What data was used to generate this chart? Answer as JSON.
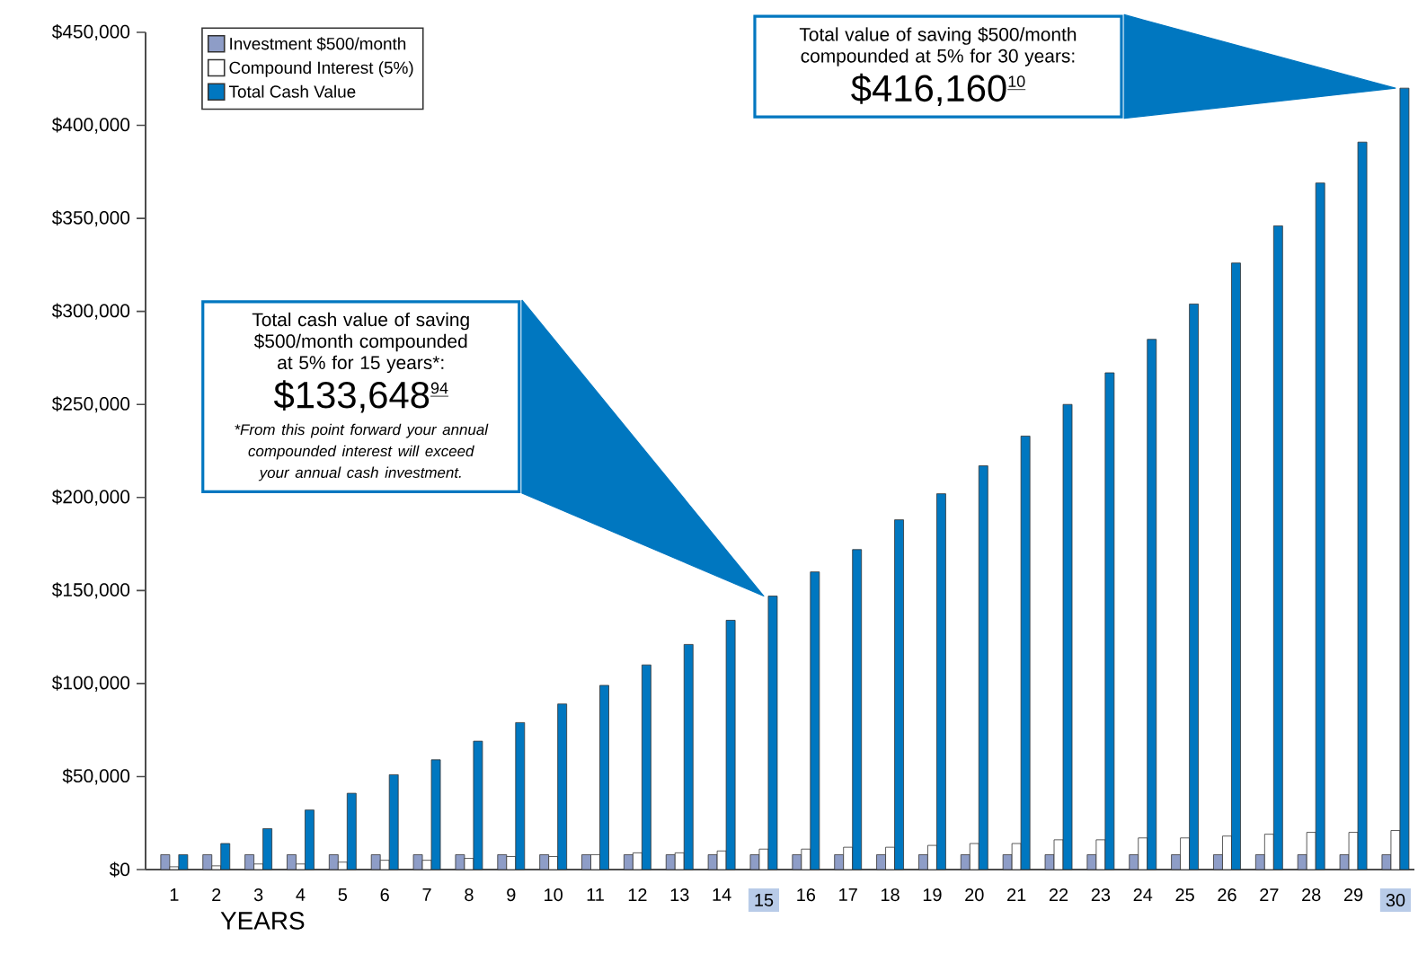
{
  "chart_data": {
    "type": "bar",
    "xlabel": "YEARS",
    "categories": [
      "1",
      "2",
      "3",
      "4",
      "5",
      "6",
      "7",
      "8",
      "9",
      "10",
      "11",
      "12",
      "13",
      "14",
      "15",
      "16",
      "17",
      "18",
      "19",
      "20",
      "21",
      "22",
      "23",
      "24",
      "25",
      "26",
      "27",
      "28",
      "29",
      "30"
    ],
    "series": [
      {
        "name": "Investment $500/month",
        "color": "#8e9dc7",
        "values": [
          8000,
          8000,
          8000,
          8000,
          8000,
          8000,
          8000,
          8000,
          8000,
          8000,
          8000,
          8000,
          8000,
          8000,
          8000,
          8000,
          8000,
          8000,
          8000,
          8000,
          8000,
          8000,
          8000,
          8000,
          8000,
          8000,
          8000,
          8000,
          8000,
          8000
        ]
      },
      {
        "name": "Compound Interest (5%)",
        "color": "#ffffff",
        "values": [
          1500,
          2000,
          3000,
          3000,
          4000,
          5000,
          5000,
          6000,
          7000,
          7000,
          8000,
          9000,
          9000,
          10000,
          11000,
          11000,
          12000,
          12000,
          13000,
          14000,
          14000,
          16000,
          16000,
          17000,
          17000,
          18000,
          19000,
          20000,
          20000,
          21000
        ]
      },
      {
        "name": "Total Cash Value",
        "color": "#0077c0",
        "values": [
          8000,
          14000,
          22000,
          32000,
          41000,
          51000,
          59000,
          69000,
          79000,
          89000,
          99000,
          110000,
          121000,
          134000,
          147000,
          160000,
          172000,
          188000,
          202000,
          217000,
          233000,
          250000,
          267000,
          285000,
          304000,
          326000,
          346000,
          369000,
          391000,
          420000
        ]
      }
    ],
    "ylim": [
      0,
      450000
    ],
    "yticks": [
      {
        "value": 0,
        "label": "$0"
      },
      {
        "value": 50000,
        "label": "$50,000"
      },
      {
        "value": 100000,
        "label": "$100,000"
      },
      {
        "value": 150000,
        "label": "$150,000"
      },
      {
        "value": 200000,
        "label": "$200,000"
      },
      {
        "value": 250000,
        "label": "$250,000"
      },
      {
        "value": 300000,
        "label": "$300,000"
      },
      {
        "value": 350000,
        "label": "$350,000"
      },
      {
        "value": 400000,
        "label": "$400,000"
      },
      {
        "value": 450000,
        "label": "$450,000"
      }
    ],
    "legend": "top left",
    "annotations": [
      "Total cash value of saving $500/month compounded at 5% for 15 years*:",
      "$133,648",
      "94",
      "*From this point forward your annual compounded interest will exceed your annual cash investment.",
      "Total value of saving $500/month compounded at 5% for 30 years:",
      "$416,160",
      "10"
    ]
  }
}
